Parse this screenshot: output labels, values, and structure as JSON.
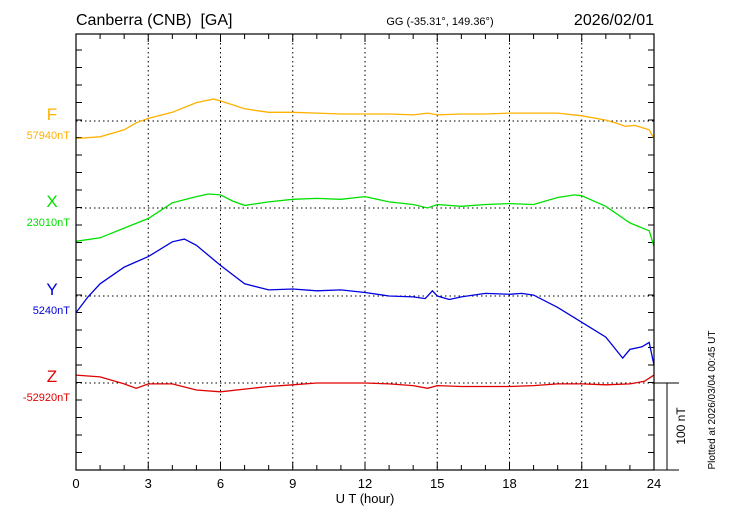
{
  "chart_data": {
    "type": "line",
    "title": "Canberra (CNB)  [GA]",
    "subtitle": "GG (-35.31°, 149.36°)",
    "date": "2026/02/01",
    "xlabel": "U T (hour)",
    "xlim": [
      0,
      24
    ],
    "xticks": [
      0,
      3,
      6,
      9,
      12,
      15,
      18,
      21,
      24
    ],
    "scale_label": "100 nT",
    "scale_nT": 100,
    "plotted_note": "Plotted at 2026/03/04 00:45 UT",
    "grid": true,
    "series": [
      {
        "name": "F",
        "baseline_label": "57940nT",
        "baseline": 57940,
        "color": "#ffb000",
        "x": [
          0,
          1,
          2,
          2.5,
          3,
          4,
          5,
          5.7,
          6,
          7,
          8,
          9,
          10,
          11,
          12,
          13,
          14,
          14.6,
          15,
          16,
          17,
          18,
          19,
          20,
          21,
          22,
          22.5,
          22.8,
          23.2,
          23.8,
          24
        ],
        "dev": [
          -20,
          -18,
          -10,
          -2,
          3,
          10,
          21,
          25,
          23,
          14,
          10,
          10,
          9,
          8,
          8,
          8,
          7,
          9,
          7,
          8,
          8,
          9,
          9,
          9,
          6,
          1,
          -3,
          -6,
          -5,
          -10,
          -20
        ]
      },
      {
        "name": "X",
        "baseline_label": "23010nT",
        "baseline": 23010,
        "color": "#00e000",
        "x": [
          0,
          1,
          2,
          3,
          4,
          5,
          5.5,
          6,
          6.5,
          7,
          8,
          9,
          10,
          11,
          12,
          13,
          14,
          14.6,
          15,
          16,
          17,
          18,
          19,
          20,
          20.7,
          21,
          22,
          23,
          23.8,
          24
        ],
        "dev": [
          -38,
          -34,
          -23,
          -12,
          6,
          13,
          16,
          15,
          8,
          3,
          7,
          10,
          11,
          10,
          13,
          7,
          4,
          0,
          4,
          2,
          4,
          5,
          4,
          12,
          15,
          14,
          2,
          -17,
          -26,
          -44
        ]
      },
      {
        "name": "Y",
        "baseline_label": "5240nT",
        "baseline": 5240,
        "color": "#0000e0",
        "x": [
          0,
          0.5,
          1,
          2,
          3,
          4,
          4.5,
          5,
          6,
          7,
          8,
          9,
          10,
          11,
          12,
          13,
          14,
          14.5,
          14.8,
          15,
          15.5,
          16,
          17,
          18,
          18.5,
          19,
          20,
          21,
          22,
          22.7,
          23,
          23.5,
          23.8,
          24
        ],
        "dev": [
          -19,
          -1,
          14,
          33,
          45,
          62,
          65,
          58,
          35,
          14,
          7,
          8,
          6,
          7,
          4,
          0,
          -1,
          -3,
          6,
          0,
          -4,
          -1,
          3,
          2,
          3,
          1,
          -13,
          -30,
          -47,
          -71,
          -61,
          -58,
          -53,
          -79
        ]
      },
      {
        "name": "Z",
        "baseline_label": "-52920nT",
        "baseline": -52920,
        "color": "#e00000",
        "x": [
          0,
          1,
          2,
          2.5,
          3,
          4,
          5,
          6,
          7,
          8,
          9,
          10,
          11,
          12,
          13,
          14,
          14.6,
          15,
          16,
          17,
          18,
          19,
          20,
          21,
          22,
          23,
          23.6,
          24
        ],
        "dev": [
          9,
          7,
          -1,
          -6,
          -1,
          -1,
          -8,
          -10,
          -7,
          -4,
          -2,
          0,
          0,
          0,
          -1,
          -3,
          -6,
          -3,
          -4,
          -4,
          -4,
          -3,
          -1,
          -1,
          -2,
          -1,
          2,
          9
        ]
      }
    ]
  }
}
